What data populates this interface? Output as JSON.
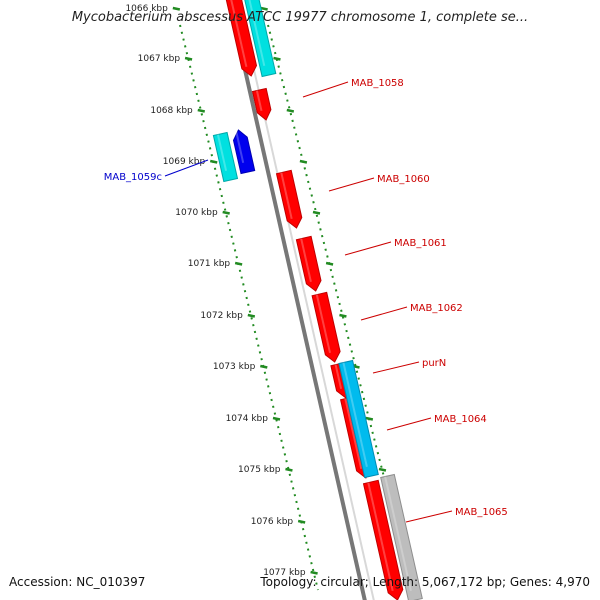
{
  "header": {
    "title": "Mycobacterium abscessus ATCC 19977 chromosome 1, complete se..."
  },
  "footer": {
    "accession": "Accession: NC_010397",
    "summary": "Topology: circular; Length: 5,067,172 bp; Genes: 4,970"
  },
  "map": {
    "ticks": [
      {
        "label": "1066 kbp"
      },
      {
        "label": "1067 kbp"
      },
      {
        "label": "1068 kbp"
      },
      {
        "label": "1069 kbp"
      },
      {
        "label": "1070 kbp"
      },
      {
        "label": "1071 kbp"
      },
      {
        "label": "1072 kbp"
      },
      {
        "label": "1073 kbp"
      },
      {
        "label": "1074 kbp"
      },
      {
        "label": "1075 kbp"
      },
      {
        "label": "1076 kbp"
      },
      {
        "label": "1077 kbp"
      }
    ],
    "gene_labels": [
      {
        "name": "MAB_1058",
        "color": "#cc0000"
      },
      {
        "name": "MAB_1059c",
        "color": "#0000cc"
      },
      {
        "name": "MAB_1060",
        "color": "#cc0000"
      },
      {
        "name": "MAB_1061",
        "color": "#cc0000"
      },
      {
        "name": "MAB_1062",
        "color": "#cc0000"
      },
      {
        "name": "purN",
        "color": "#cc0000"
      },
      {
        "name": "MAB_1064",
        "color": "#cc0000"
      },
      {
        "name": "MAB_1065",
        "color": "#cc0000"
      }
    ],
    "colors": {
      "forward_cds": "#ff0000",
      "reverse_cds": "#0000ee",
      "forward_feature": "#00bbee",
      "reverse_feature": "#00e0e0",
      "other_feature": "#bdbdbd",
      "backbone": "#777777",
      "ruler": "#228b22"
    }
  }
}
